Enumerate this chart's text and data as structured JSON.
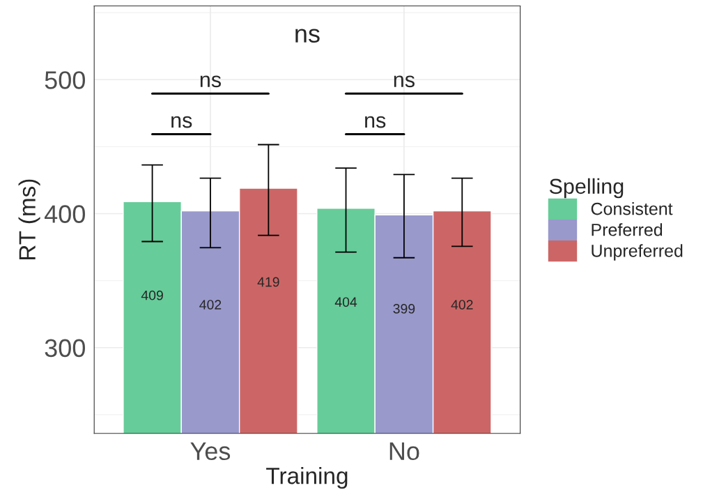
{
  "chart_data": {
    "type": "bar",
    "xlabel": "Training",
    "ylabel": "RT (ms)",
    "legend_title": "Spelling",
    "categories": [
      "Yes",
      "No"
    ],
    "series": [
      {
        "name": "Consistent",
        "color": "#66cc99",
        "values": [
          409,
          404
        ],
        "errors": [
          [
            379.2,
            436.3
          ],
          [
            371.3,
            434
          ]
        ]
      },
      {
        "name": "Preferred",
        "color": "#9999cc",
        "values": [
          402,
          399
        ],
        "errors": [
          [
            374.6,
            426.5
          ],
          [
            367.1,
            429.2
          ]
        ]
      },
      {
        "name": "Unpreferred",
        "color": "#cc6666",
        "values": [
          419,
          402
        ],
        "errors": [
          [
            383.8,
            451.5
          ],
          [
            375.6,
            426.5
          ]
        ]
      }
    ],
    "ylim": [
      236,
      555
    ],
    "yticks": [
      300,
      400,
      500
    ],
    "grid": true,
    "legend": "right",
    "data_labels": true,
    "annotations": [
      "ns",
      "ns",
      "ns",
      "ns",
      "ns"
    ]
  }
}
